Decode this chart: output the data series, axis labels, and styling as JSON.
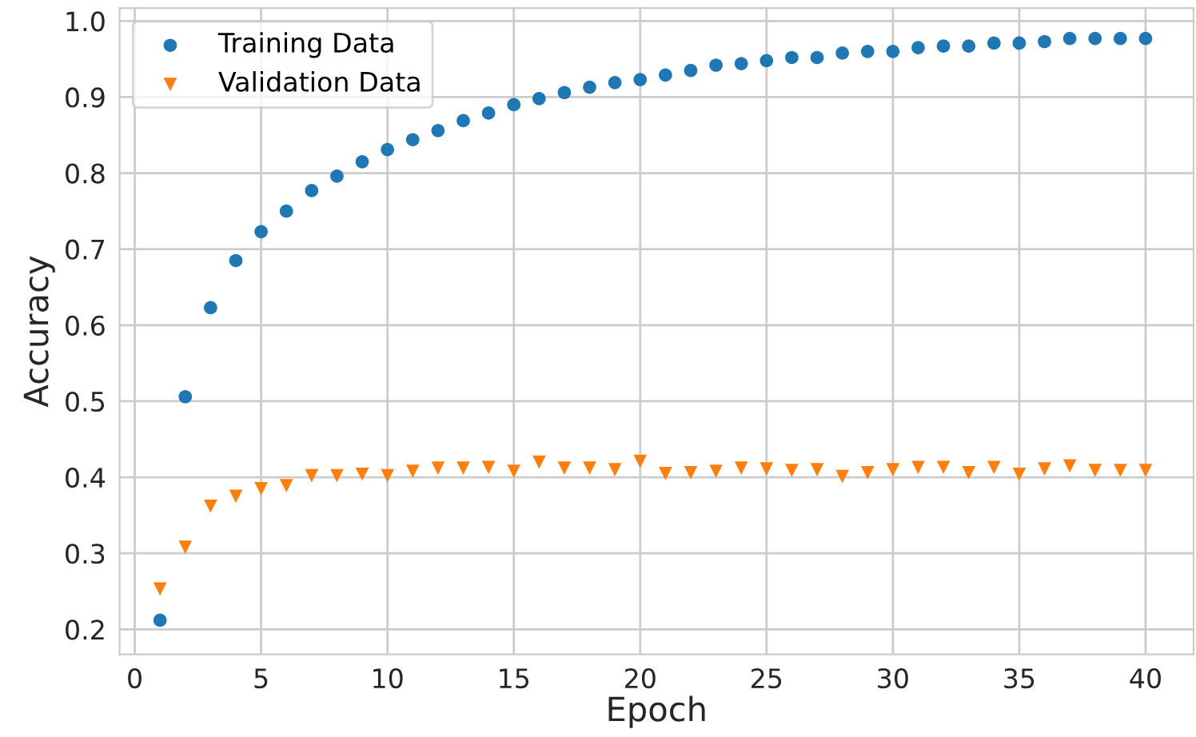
{
  "chart_data": {
    "type": "scatter",
    "xlabel": "Epoch",
    "ylabel": "Accuracy",
    "x": [
      1,
      2,
      3,
      4,
      5,
      6,
      7,
      8,
      9,
      10,
      11,
      12,
      13,
      14,
      15,
      16,
      17,
      18,
      19,
      20,
      21,
      22,
      23,
      24,
      25,
      26,
      27,
      28,
      29,
      30,
      31,
      32,
      33,
      34,
      35,
      36,
      37,
      38,
      39,
      40
    ],
    "series": [
      {
        "name": "Training Data",
        "color": "#1f77b4",
        "marker": "circle",
        "values": [
          0.212,
          0.506,
          0.623,
          0.685,
          0.723,
          0.75,
          0.777,
          0.796,
          0.815,
          0.831,
          0.844,
          0.856,
          0.869,
          0.879,
          0.89,
          0.898,
          0.906,
          0.913,
          0.919,
          0.923,
          0.929,
          0.935,
          0.942,
          0.944,
          0.948,
          0.952,
          0.952,
          0.958,
          0.96,
          0.96,
          0.965,
          0.967,
          0.967,
          0.971,
          0.971,
          0.973,
          0.977,
          0.977,
          0.977,
          0.977
        ]
      },
      {
        "name": "Validation Data",
        "color": "#ff7f0e",
        "marker": "triangle",
        "values": [
          0.253,
          0.308,
          0.362,
          0.375,
          0.385,
          0.389,
          0.402,
          0.402,
          0.404,
          0.402,
          0.408,
          0.412,
          0.412,
          0.413,
          0.408,
          0.42,
          0.412,
          0.412,
          0.41,
          0.421,
          0.405,
          0.406,
          0.408,
          0.412,
          0.411,
          0.409,
          0.41,
          0.401,
          0.406,
          0.41,
          0.413,
          0.413,
          0.406,
          0.413,
          0.404,
          0.411,
          0.415,
          0.409,
          0.409,
          0.409
        ]
      }
    ],
    "xlim": [
      -0.6,
      41.9
    ],
    "ylim": [
      0.167,
      1.017
    ],
    "xticks": [
      0,
      5,
      10,
      15,
      20,
      25,
      30,
      35,
      40
    ],
    "yticks": [
      0.2,
      0.3,
      0.4,
      0.5,
      0.6,
      0.7,
      0.8,
      0.9,
      {
        "value": 1,
        "label": "1.0"
      }
    ],
    "grid": true,
    "legend": "top left"
  }
}
